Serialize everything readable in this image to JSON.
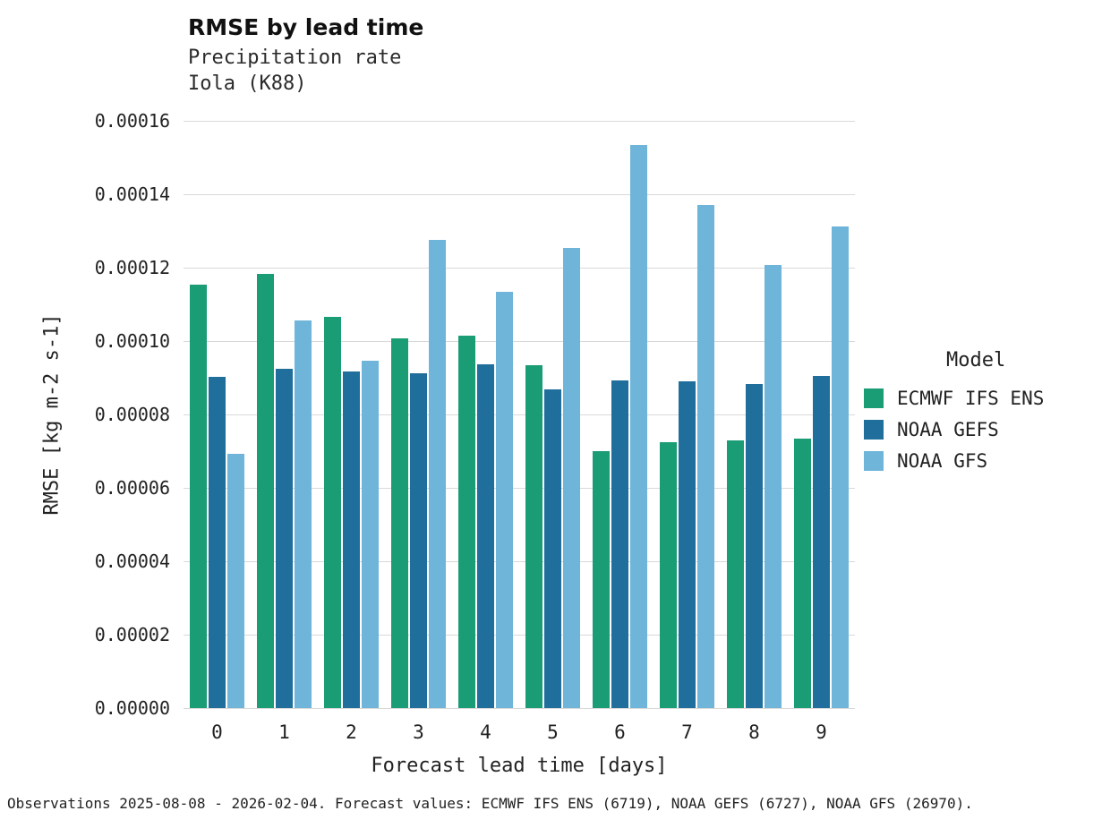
{
  "footer": "Observations 2025-08-08 - 2026-02-04. Forecast values: ECMWF IFS ENS (6719), NOAA GEFS (6727), NOAA GFS (26970).",
  "chart_data": {
    "type": "bar",
    "title": "RMSE by lead time",
    "subtitle": [
      "Precipitation rate",
      "Iola (K88)"
    ],
    "xlabel": "Forecast lead time [days]",
    "ylabel": "RMSE [kg m-2 s-1]",
    "categories": [
      "0",
      "1",
      "2",
      "3",
      "4",
      "5",
      "6",
      "7",
      "8",
      "9"
    ],
    "series": [
      {
        "name": "ECMWF IFS ENS",
        "color": "#1a9c74",
        "values": [
          0.0001155,
          0.0001183,
          0.0001065,
          0.0001007,
          0.0001015,
          9.35e-05,
          7e-05,
          7.25e-05,
          7.3e-05,
          7.35e-05
        ]
      },
      {
        "name": "NOAA GEFS",
        "color": "#1f6e9c",
        "values": [
          9.03e-05,
          9.25e-05,
          9.18e-05,
          9.12e-05,
          9.37e-05,
          8.68e-05,
          8.93e-05,
          8.9e-05,
          8.83e-05,
          9.05e-05
        ]
      },
      {
        "name": "NOAA GFS",
        "color": "#6fb4d9",
        "values": [
          6.93e-05,
          0.0001057,
          9.47e-05,
          0.0001275,
          0.0001135,
          0.0001253,
          0.0001534,
          0.000137,
          0.0001208,
          0.0001313
        ]
      }
    ],
    "ylim": [
      0,
      0.00016
    ],
    "ytick_step": 2e-05,
    "yticks": [
      "0.00000",
      "0.00002",
      "0.00004",
      "0.00006",
      "0.00008",
      "0.00010",
      "0.00012",
      "0.00014",
      "0.00016"
    ],
    "grid": true,
    "legend_title": "Model",
    "legend_position": "right"
  }
}
